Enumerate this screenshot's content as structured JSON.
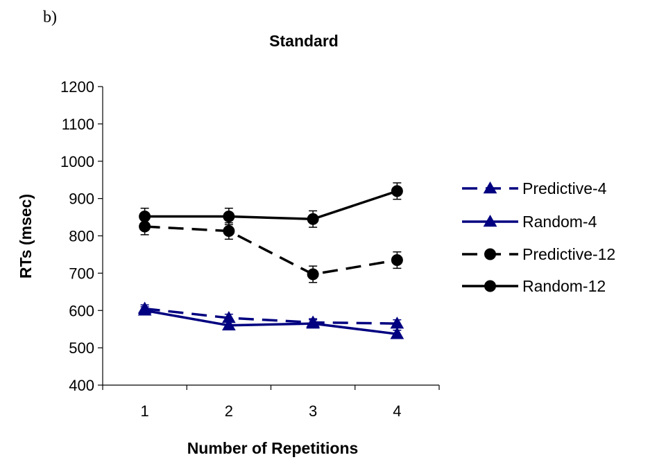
{
  "panel_label": "b)",
  "chart_data": {
    "type": "line",
    "title": "Standard",
    "xlabel": "Number of Repetitions",
    "ylabel": "RTs (msec)",
    "categories": [
      "1",
      "2",
      "3",
      "4"
    ],
    "ylim": [
      400,
      1200
    ],
    "yticks": [
      400,
      500,
      600,
      700,
      800,
      900,
      1000,
      1100,
      1200
    ],
    "grid": false,
    "legend_position": "right",
    "series": [
      {
        "name": "Predictive-4",
        "values": [
          605,
          580,
          568,
          565
        ],
        "errors": [
          10,
          10,
          10,
          10
        ],
        "color": "#000080",
        "dash": true,
        "marker": "triangle"
      },
      {
        "name": "Random-4",
        "values": [
          600,
          560,
          565,
          537
        ],
        "errors": [
          10,
          10,
          10,
          10
        ],
        "color": "#000080",
        "dash": false,
        "marker": "triangle"
      },
      {
        "name": "Predictive-12",
        "values": [
          825,
          813,
          697,
          735
        ],
        "errors": [
          22,
          22,
          22,
          22
        ],
        "color": "#000000",
        "dash": true,
        "marker": "circle"
      },
      {
        "name": "Random-12",
        "values": [
          852,
          852,
          845,
          920
        ],
        "errors": [
          22,
          22,
          22,
          22
        ],
        "color": "#000000",
        "dash": false,
        "marker": "circle"
      }
    ]
  }
}
